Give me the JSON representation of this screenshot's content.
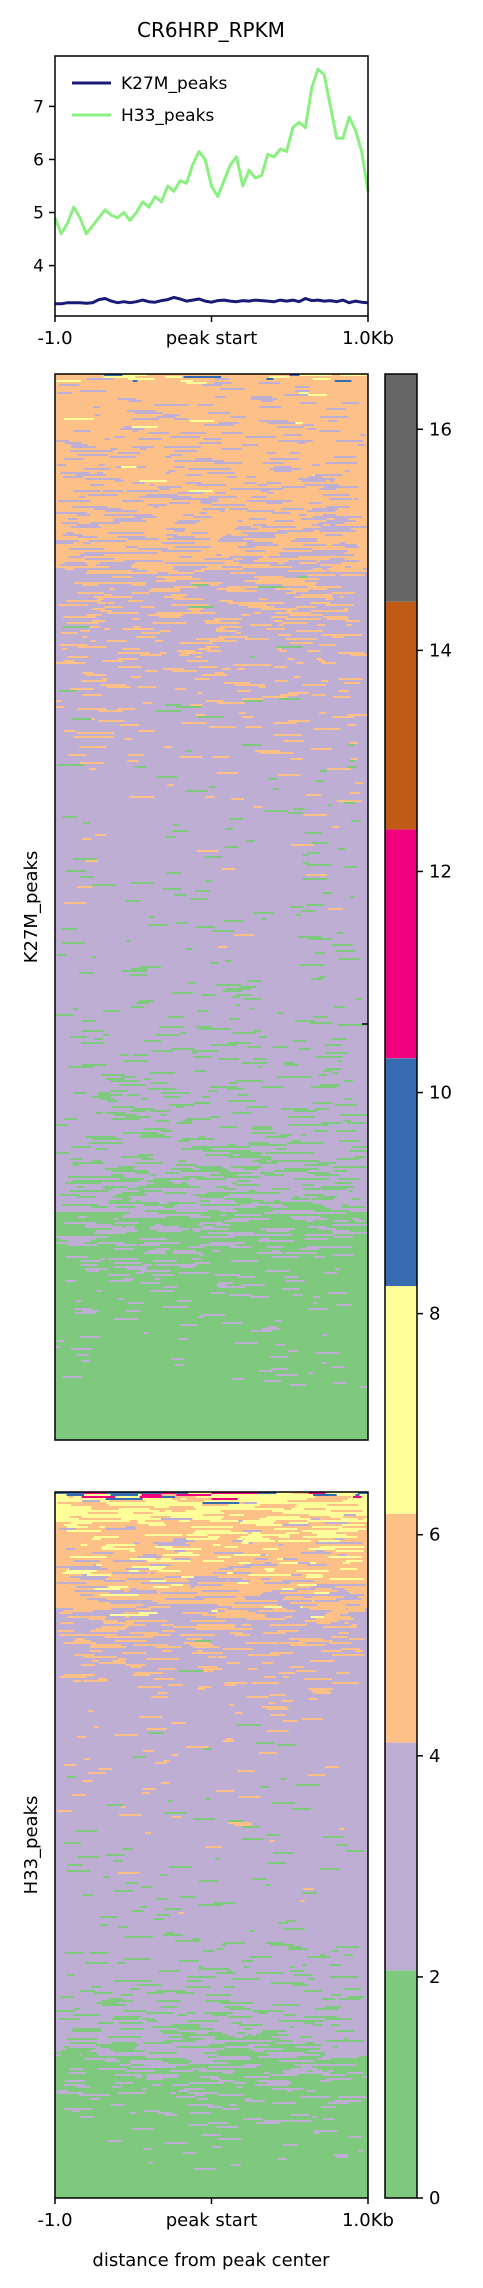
{
  "chart_data": [
    {
      "type": "line",
      "title": "CR6HRP_RPKM",
      "xlabel": "",
      "ylabel": "",
      "x_tick_labels": [
        "-1.0",
        "peak start",
        "1.0Kb"
      ],
      "ylim": [
        3.05,
        7.95
      ],
      "y_ticks": [
        4,
        5,
        6,
        7
      ],
      "legend": "top-left",
      "x": [
        0,
        2,
        4,
        6,
        8,
        10,
        12,
        14,
        16,
        18,
        20,
        22,
        24,
        26,
        28,
        30,
        32,
        34,
        36,
        38,
        40,
        42,
        44,
        46,
        48,
        50,
        52,
        54,
        56,
        58,
        60,
        62,
        64,
        66,
        68,
        70,
        72,
        74,
        76,
        78,
        80,
        82,
        84,
        86,
        88,
        90,
        92,
        94,
        96,
        98,
        100
      ],
      "series": [
        {
          "name": "K27M_peaks",
          "color": "#1a1a78",
          "values": [
            3.28,
            3.28,
            3.3,
            3.3,
            3.3,
            3.29,
            3.3,
            3.36,
            3.38,
            3.33,
            3.3,
            3.32,
            3.3,
            3.32,
            3.35,
            3.32,
            3.31,
            3.34,
            3.36,
            3.4,
            3.37,
            3.33,
            3.35,
            3.37,
            3.33,
            3.31,
            3.34,
            3.35,
            3.33,
            3.32,
            3.34,
            3.33,
            3.35,
            3.34,
            3.33,
            3.32,
            3.35,
            3.33,
            3.35,
            3.32,
            3.38,
            3.34,
            3.35,
            3.33,
            3.34,
            3.32,
            3.35,
            3.3,
            3.33,
            3.31,
            3.3
          ]
        },
        {
          "name": "H33_peaks",
          "color": "#8af07f",
          "values": [
            4.9,
            4.6,
            4.8,
            5.1,
            4.9,
            4.6,
            4.75,
            4.9,
            5.05,
            4.95,
            4.9,
            5.0,
            4.85,
            5.0,
            5.2,
            5.1,
            5.3,
            5.2,
            5.5,
            5.4,
            5.6,
            5.55,
            5.9,
            6.15,
            6.0,
            5.5,
            5.3,
            5.6,
            5.9,
            6.05,
            5.5,
            5.8,
            5.65,
            5.7,
            6.1,
            6.05,
            6.2,
            6.15,
            6.6,
            6.7,
            6.6,
            7.35,
            7.7,
            7.6,
            7.0,
            6.4,
            6.4,
            6.8,
            6.55,
            6.15,
            5.4
          ]
        }
      ]
    },
    {
      "type": "heatmap",
      "x_tick_labels": [
        "-1.0",
        "peak start",
        "1.0Kb"
      ],
      "xlabel": "distance from peak center",
      "groups": [
        "K27M_peaks",
        "H33_peaks"
      ],
      "colorbar": {
        "range": [
          0,
          16.5
        ],
        "ticks": [
          0,
          2,
          4,
          6,
          8,
          10,
          12,
          14,
          16
        ],
        "bands": [
          {
            "from": 0,
            "to": 2.06,
            "color": "#7fc97f"
          },
          {
            "from": 2.06,
            "to": 4.12,
            "color": "#beaed4"
          },
          {
            "from": 4.12,
            "to": 6.19,
            "color": "#fdc086"
          },
          {
            "from": 6.19,
            "to": 8.25,
            "color": "#ffff99"
          },
          {
            "from": 8.25,
            "to": 10.31,
            "color": "#386cb0"
          },
          {
            "from": 10.31,
            "to": 12.38,
            "color": "#f0027f"
          },
          {
            "from": 12.38,
            "to": 14.44,
            "color": "#bf5b17"
          },
          {
            "from": 14.44,
            "to": 16.5,
            "color": "#666666"
          }
        ]
      },
      "row_profiles": {
        "K27M_peaks": [
          {
            "pos": 0.0,
            "mix": {
              "#fdc086": 0.55,
              "#ffff99": 0.2,
              "#386cb0": 0.15,
              "#f0027f": 0.05,
              "#beaed4": 0.05
            }
          },
          {
            "pos": 0.012,
            "mix": {
              "#fdc086": 0.85,
              "#beaed4": 0.12,
              "#ffff99": 0.03
            }
          },
          {
            "pos": 0.15,
            "mix": {
              "#fdc086": 0.6,
              "#beaed4": 0.4
            }
          },
          {
            "pos": 0.27,
            "mix": {
              "#fdc086": 0.2,
              "#beaed4": 0.78,
              "#7fc97f": 0.02
            }
          },
          {
            "pos": 0.38,
            "mix": {
              "#fdc086": 0.06,
              "#beaed4": 0.9,
              "#7fc97f": 0.04
            }
          },
          {
            "pos": 0.55,
            "mix": {
              "#beaed4": 0.92,
              "#7fc97f": 0.08
            }
          },
          {
            "pos": 0.7,
            "mix": {
              "#beaed4": 0.78,
              "#7fc97f": 0.22
            }
          },
          {
            "pos": 0.8,
            "mix": {
              "#beaed4": 0.45,
              "#7fc97f": 0.55
            }
          },
          {
            "pos": 0.86,
            "mix": {
              "#beaed4": 0.12,
              "#7fc97f": 0.88
            }
          },
          {
            "pos": 1.0,
            "mix": {
              "#7fc97f": 1.0
            }
          }
        ],
        "H33_peaks": [
          {
            "pos": 0.0,
            "mix": {
              "#386cb0": 0.35,
              "#f0027f": 0.15,
              "#ffff99": 0.35,
              "#fdc086": 0.15
            }
          },
          {
            "pos": 0.015,
            "mix": {
              "#ffff99": 0.6,
              "#fdc086": 0.35,
              "#beaed4": 0.05
            }
          },
          {
            "pos": 0.08,
            "mix": {
              "#ffff99": 0.25,
              "#fdc086": 0.6,
              "#beaed4": 0.15
            }
          },
          {
            "pos": 0.18,
            "mix": {
              "#fdc086": 0.45,
              "#beaed4": 0.55
            }
          },
          {
            "pos": 0.3,
            "mix": {
              "#fdc086": 0.06,
              "#beaed4": 0.93,
              "#7fc97f": 0.01
            }
          },
          {
            "pos": 0.6,
            "mix": {
              "#beaed4": 0.93,
              "#7fc97f": 0.07
            }
          },
          {
            "pos": 0.75,
            "mix": {
              "#beaed4": 0.72,
              "#7fc97f": 0.28
            }
          },
          {
            "pos": 0.84,
            "mix": {
              "#beaed4": 0.3,
              "#7fc97f": 0.7
            }
          },
          {
            "pos": 0.9,
            "mix": {
              "#beaed4": 0.08,
              "#7fc97f": 0.92
            }
          },
          {
            "pos": 1.0,
            "mix": {
              "#7fc97f": 1.0
            }
          }
        ]
      }
    }
  ]
}
